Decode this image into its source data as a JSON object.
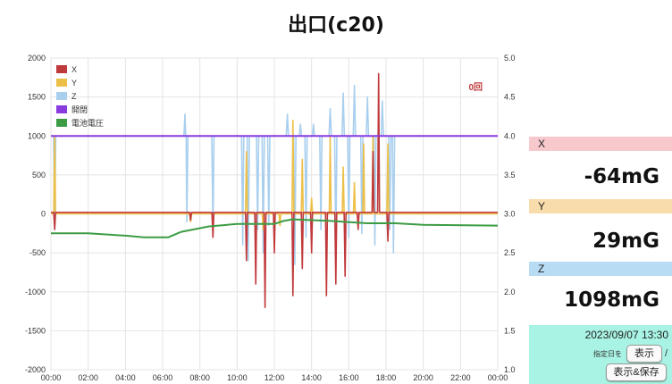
{
  "title": "出口(c20)",
  "chart_data": {
    "type": "line",
    "y_left_ticks": [
      "2000",
      "1500",
      "1000",
      "500",
      "0",
      "-500",
      "-1000",
      "-1500",
      "-2000"
    ],
    "y_right_ticks": [
      "5.0",
      "4.5",
      "4.0",
      "3.5",
      "3.0",
      "2.5",
      "2.0",
      "1.5",
      "1.0"
    ],
    "x_ticks": [
      "00:00",
      "02:00",
      "04:00",
      "06:00",
      "08:00",
      "10:00",
      "12:00",
      "14:00",
      "16:00",
      "18:00",
      "20:00",
      "22:00",
      "00:00"
    ],
    "ylim": [
      -2000,
      2000
    ],
    "y2lim": [
      1.0,
      5.0
    ],
    "xlim_hours": [
      0,
      24
    ],
    "grid": true,
    "legend_position": "top-left",
    "annotation": "0回",
    "legend": [
      {
        "name": "X",
        "color": "#c0393b"
      },
      {
        "name": "Y",
        "color": "#ecc048"
      },
      {
        "name": "Z",
        "color": "#a9cfee"
      },
      {
        "name": "開閉",
        "color": "#8a3be0"
      },
      {
        "name": "電池電圧",
        "color": "#3c9c44"
      }
    ],
    "colors": {
      "X": "#c0393b",
      "Y": "#ecc048",
      "Z": "#a9cfee",
      "開閉": "#8a3be0",
      "電池電圧": "#3c9c44"
    },
    "series": [
      {
        "name": "X",
        "baseline": 20,
        "spikes": [
          [
            0.2,
            -200
          ],
          [
            7.5,
            -80
          ],
          [
            8.7,
            -300
          ],
          [
            10.5,
            -600
          ],
          [
            11.0,
            -900
          ],
          [
            11.5,
            -1200
          ],
          [
            12.0,
            -500
          ],
          [
            13.0,
            -1050
          ],
          [
            13.5,
            -700
          ],
          [
            14.0,
            -500
          ],
          [
            14.8,
            -1050
          ],
          [
            15.3,
            -900
          ],
          [
            15.8,
            -800
          ],
          [
            16.5,
            -200
          ],
          [
            17.3,
            800
          ],
          [
            17.6,
            1800
          ],
          [
            18.1,
            -350
          ]
        ]
      },
      {
        "name": "Y",
        "baseline": 0,
        "spikes": [
          [
            0.2,
            1000
          ],
          [
            7.5,
            -100
          ],
          [
            8.7,
            -50
          ],
          [
            10.5,
            800
          ],
          [
            11.4,
            -200
          ],
          [
            12.3,
            -150
          ],
          [
            13.0,
            1200
          ],
          [
            13.5,
            700
          ],
          [
            14.0,
            200
          ],
          [
            15.0,
            1000
          ],
          [
            15.7,
            600
          ],
          [
            16.3,
            400
          ],
          [
            16.8,
            900
          ],
          [
            17.3,
            1000
          ],
          [
            18.1,
            900
          ]
        ]
      },
      {
        "name": "Z",
        "baseline": 1000,
        "spikes": [
          [
            0.2,
            -200
          ],
          [
            7.2,
            1280
          ],
          [
            7.3,
            -100
          ],
          [
            8.7,
            -180
          ],
          [
            10.3,
            -400
          ],
          [
            10.6,
            -600
          ],
          [
            11.1,
            -200
          ],
          [
            11.4,
            -500
          ],
          [
            11.7,
            -150
          ],
          [
            12.7,
            1280
          ],
          [
            13.1,
            -650
          ],
          [
            13.4,
            1150
          ],
          [
            13.7,
            -300
          ],
          [
            14.1,
            1150
          ],
          [
            14.5,
            -200
          ],
          [
            15.0,
            1350
          ],
          [
            15.3,
            -500
          ],
          [
            15.7,
            1550
          ],
          [
            16.0,
            -300
          ],
          [
            16.3,
            1650
          ],
          [
            16.7,
            -250
          ],
          [
            17.0,
            1500
          ],
          [
            17.4,
            -400
          ],
          [
            17.8,
            1450
          ],
          [
            18.2,
            -200
          ],
          [
            18.4,
            -500
          ]
        ]
      },
      {
        "name": "開閉",
        "baseline": 1000
      },
      {
        "name": "電池電圧",
        "points": [
          [
            0,
            2.75
          ],
          [
            2,
            2.75
          ],
          [
            4,
            2.72
          ],
          [
            5,
            2.7
          ],
          [
            6.3,
            2.7
          ],
          [
            7,
            2.77
          ],
          [
            8.5,
            2.84
          ],
          [
            10,
            2.87
          ],
          [
            12,
            2.87
          ],
          [
            12.5,
            2.91
          ],
          [
            13,
            2.93
          ],
          [
            15,
            2.91
          ],
          [
            17,
            2.88
          ],
          [
            18.5,
            2.88
          ],
          [
            20,
            2.86
          ],
          [
            24,
            2.85
          ]
        ]
      }
    ]
  },
  "panel": {
    "x": {
      "label": "X",
      "value": "-64mG"
    },
    "y": {
      "label": "Y",
      "value": "29mG"
    },
    "z": {
      "label": "Z",
      "value": "1098mG"
    },
    "datetime": "2023/09/07 13:30",
    "date_label": "指定日を",
    "show_button": "表示",
    "save_button": "表示&保存",
    "slash": "/"
  }
}
